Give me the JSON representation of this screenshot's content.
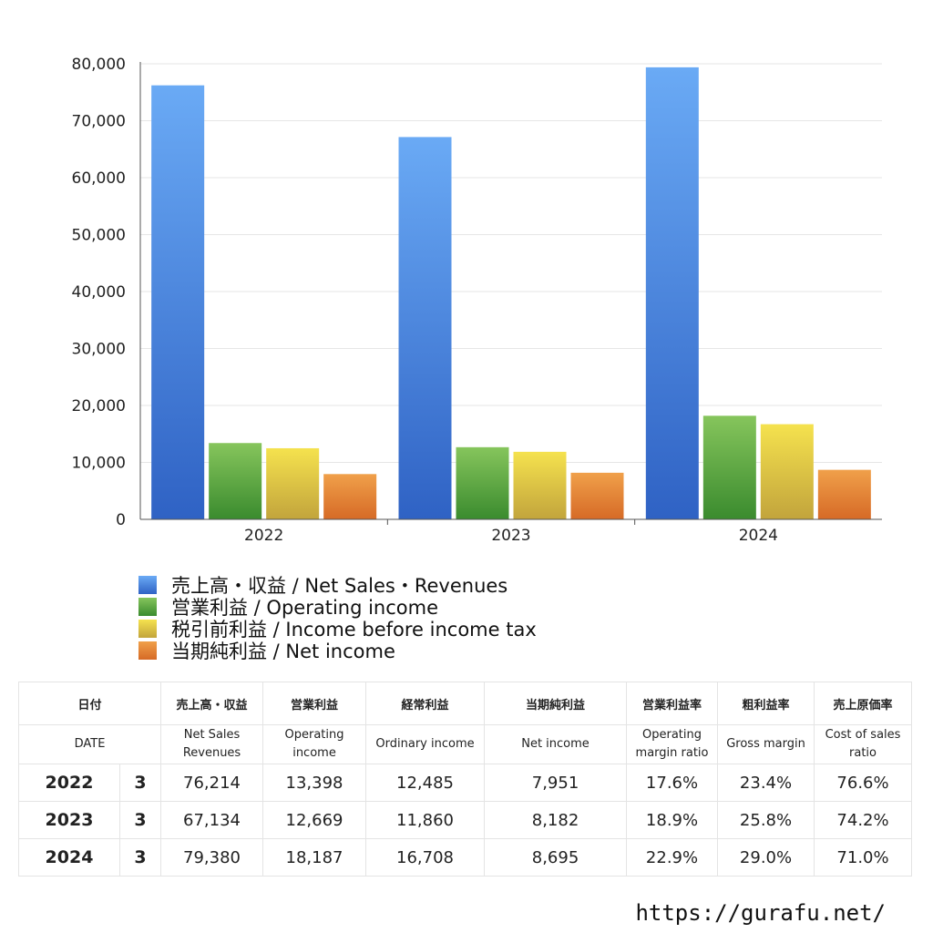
{
  "chart_data": {
    "type": "bar",
    "categories": [
      "2022",
      "2023",
      "2024"
    ],
    "series": [
      {
        "name": "売上高・収益 / Net Sales・Revenues",
        "values": [
          76214,
          67134,
          79380
        ],
        "color_top": "#6aaaf5",
        "color_bottom": "#2f62c4"
      },
      {
        "name": "営業利益 / Operating income",
        "values": [
          13398,
          12669,
          18187
        ],
        "color_top": "#86c55c",
        "color_bottom": "#3a8b2e"
      },
      {
        "name": "税引前利益 / Income before income tax",
        "values": [
          12485,
          11860,
          16708
        ],
        "color_top": "#f5e24e",
        "color_bottom": "#c2a43c"
      },
      {
        "name": "当期純利益 / Net income",
        "values": [
          7951,
          8182,
          8695
        ],
        "color_top": "#f0a04a",
        "color_bottom": "#d66a26"
      }
    ],
    "yticks": [
      "0",
      "10,000",
      "20,000",
      "30,000",
      "40,000",
      "50,000",
      "60,000",
      "70,000",
      "80,000"
    ],
    "ylim": [
      0,
      80000
    ],
    "grid": true,
    "legend_position": "bottom-left"
  },
  "table": {
    "header_jp": [
      "日付",
      "売上高・収益",
      "営業利益",
      "経常利益",
      "当期純利益",
      "営業利益率",
      "粗利益率",
      "売上原価率"
    ],
    "header_en": [
      "DATE",
      "Net Sales\nRevenues",
      "Operating\nincome",
      "Ordinary income",
      "Net income",
      "Operating\nmargin ratio",
      "Gross margin",
      "Cost of sales\nratio"
    ],
    "rows": [
      {
        "year": "2022",
        "month": "3",
        "sales": "76,214",
        "operating": "13,398",
        "ordinary": "12,485",
        "net": "7,951",
        "op_margin": "17.6%",
        "gross_margin": "23.4%",
        "cost_ratio": "76.6%"
      },
      {
        "year": "2023",
        "month": "3",
        "sales": "67,134",
        "operating": "12,669",
        "ordinary": "11,860",
        "net": "8,182",
        "op_margin": "18.9%",
        "gross_margin": "25.8%",
        "cost_ratio": "74.2%"
      },
      {
        "year": "2024",
        "month": "3",
        "sales": "79,380",
        "operating": "18,187",
        "ordinary": "16,708",
        "net": "8,695",
        "op_margin": "22.9%",
        "gross_margin": "29.0%",
        "cost_ratio": "71.0%"
      }
    ]
  },
  "footer": {
    "url": "https://gurafu.net/"
  }
}
